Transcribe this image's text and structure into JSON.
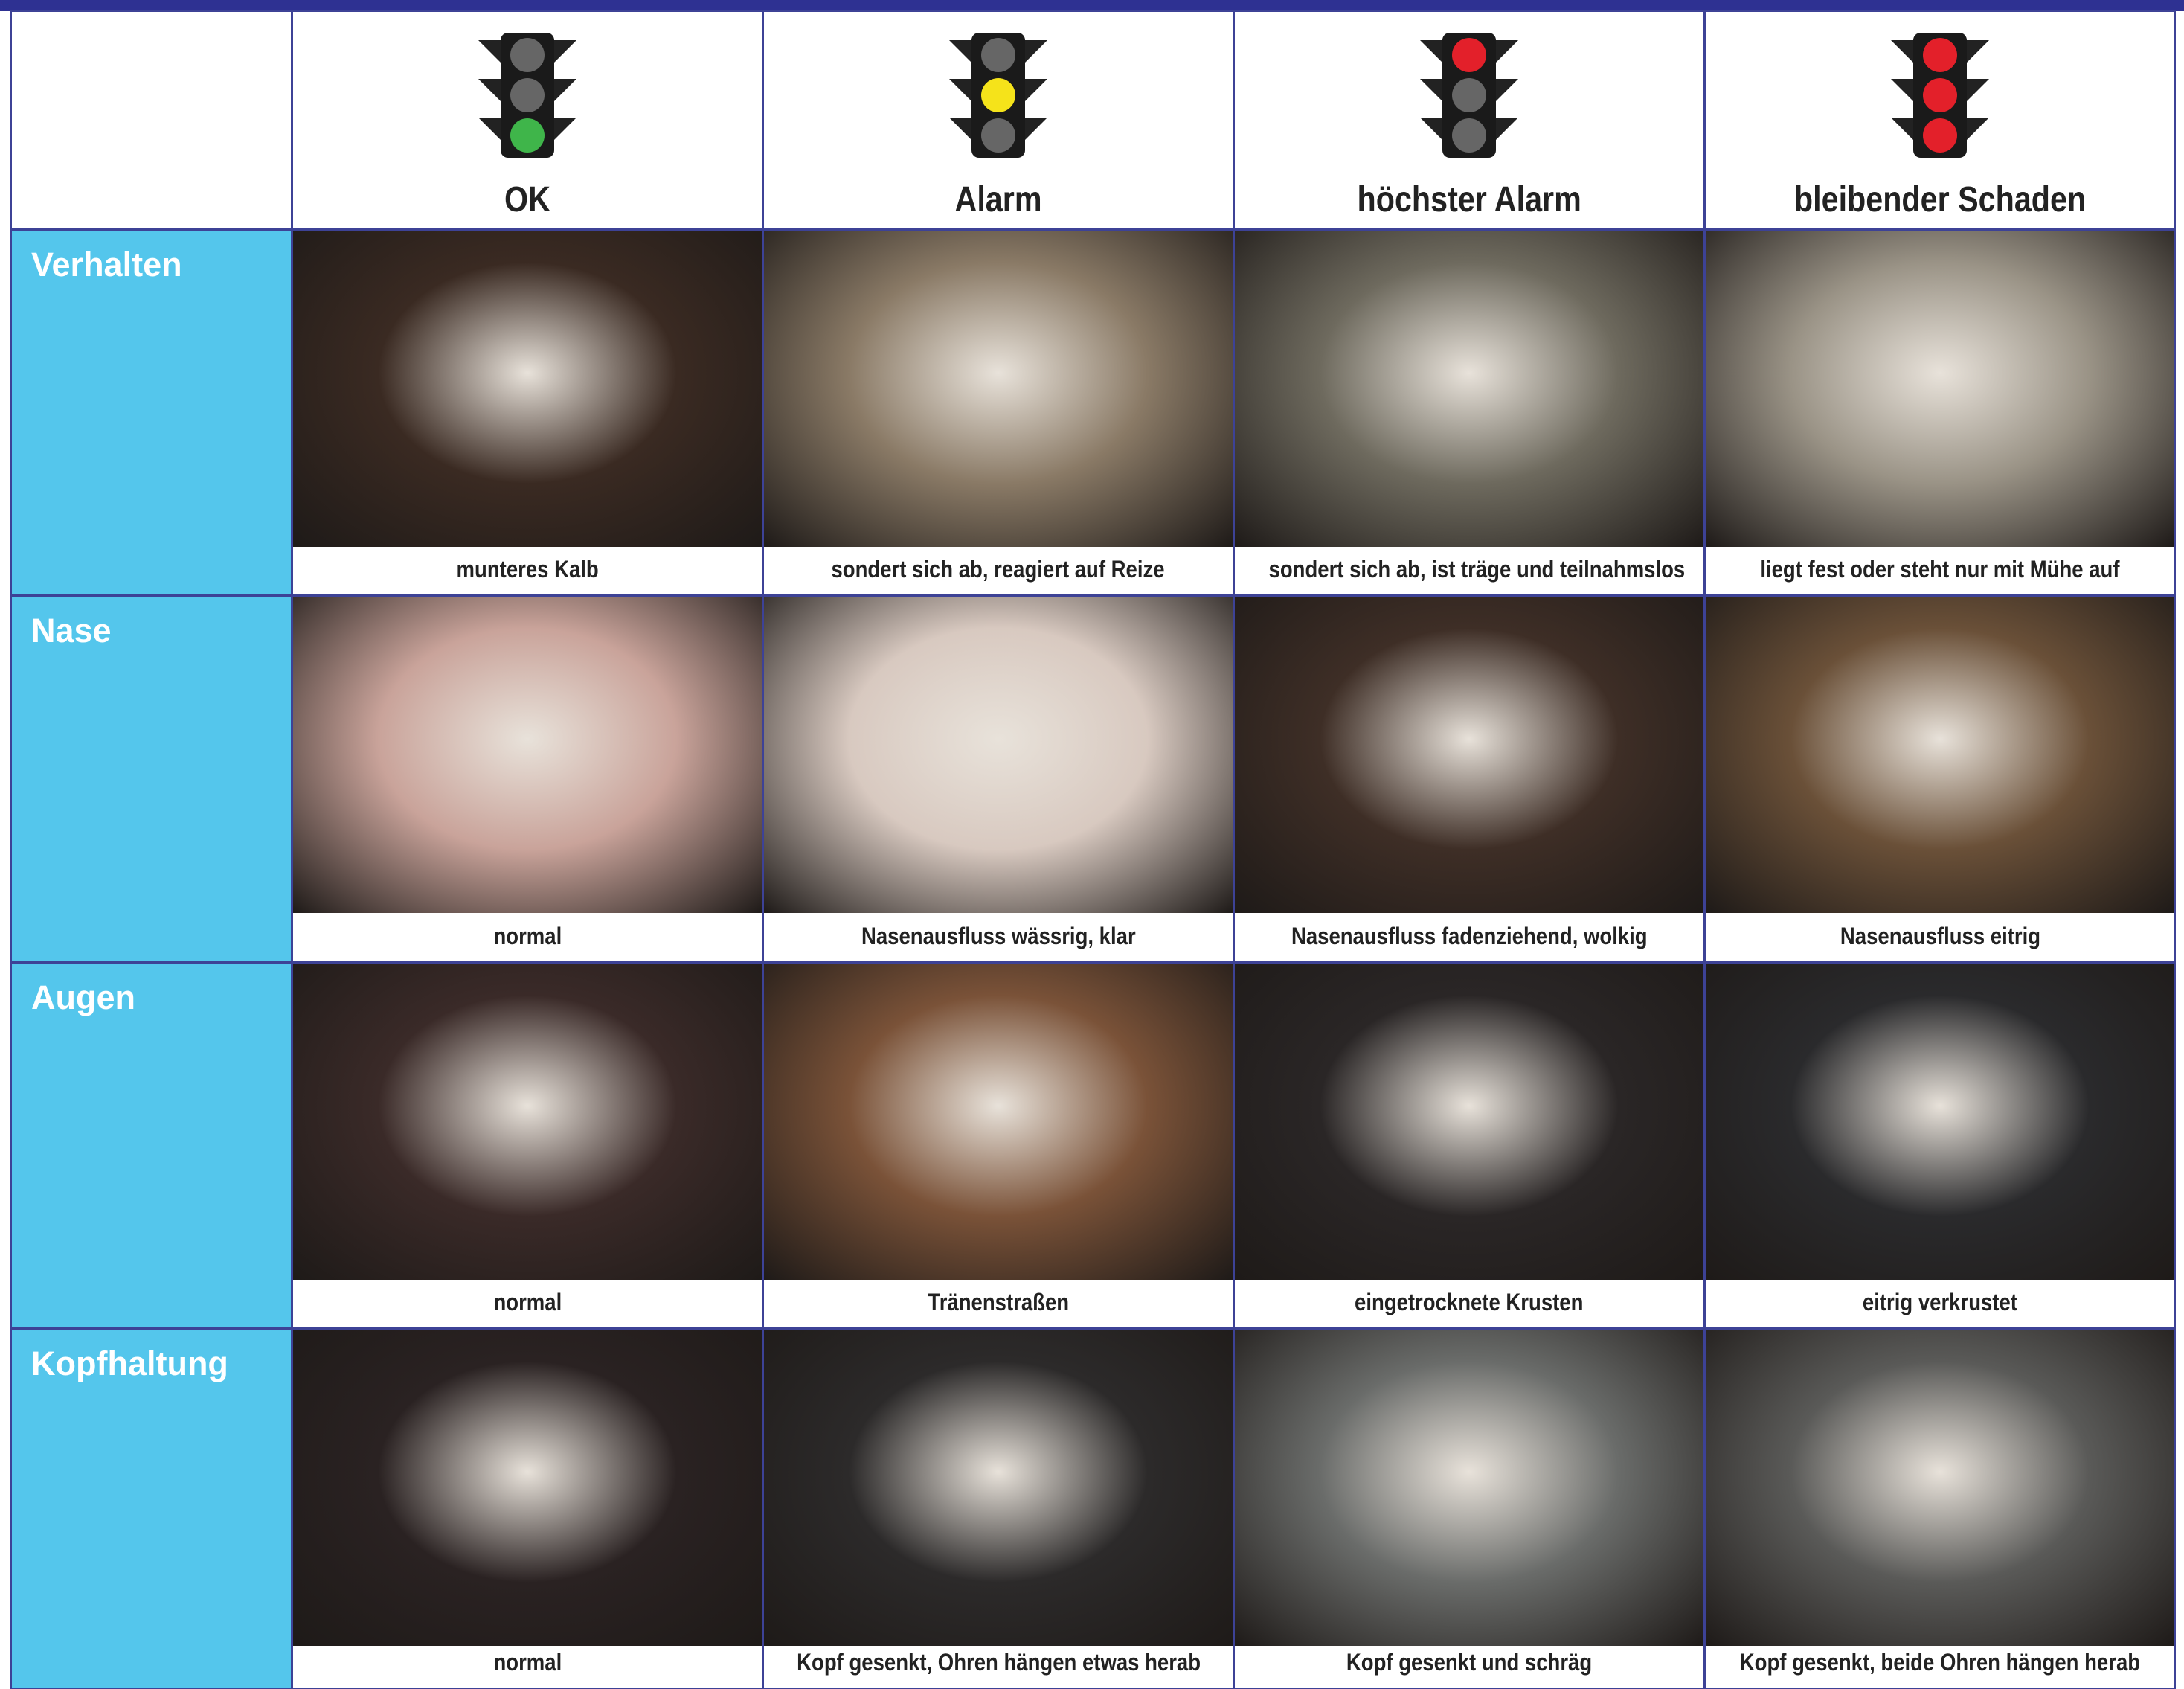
{
  "header": {
    "columns": [
      "OK",
      "Alarm",
      "höchster Alarm",
      "bleibender Schaden"
    ]
  },
  "rows": [
    {
      "label": "Verhalten",
      "captions": [
        "munteres Kalb",
        "sondert sich ab, reagiert auf Reize",
        "sondert sich ab, ist träge und teilnahmslos",
        "liegt fest oder steht nur mit Mühe auf"
      ]
    },
    {
      "label": "Nase",
      "captions": [
        "normal",
        "Nasenausfluss wässrig, klar",
        "Nasenausfluss fadenziehend, wolkig",
        "Nasenausfluss eitrig"
      ]
    },
    {
      "label": "Augen",
      "captions": [
        "normal",
        "Tränenstraßen",
        "eingetrocknete Krusten",
        "eitrig verkrustet"
      ]
    },
    {
      "label": "Kopfhaltung",
      "captions": [
        "normal",
        "Kopf gesenkt, Ohren hängen etwas herab",
        "Kopf gesenkt und schräg",
        "Kopf gesenkt, beide Ohren hängen herab"
      ]
    }
  ]
}
